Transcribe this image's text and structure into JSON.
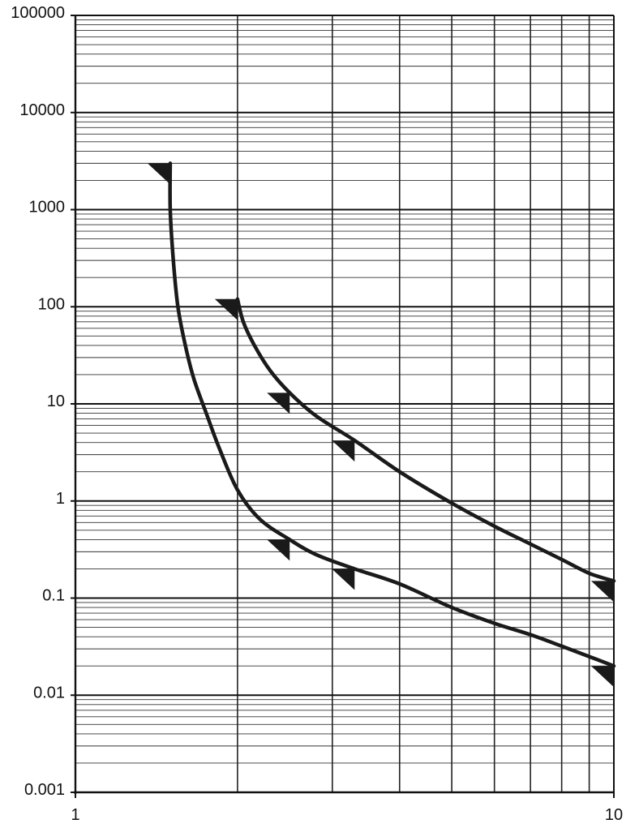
{
  "chart_data": {
    "type": "line",
    "title": "",
    "xlabel": "",
    "ylabel": "",
    "xscale": "log",
    "yscale": "log",
    "xlim": [
      1,
      10
    ],
    "ylim": [
      0.001,
      100000
    ],
    "grid": true,
    "x_tick_labels": [
      "1",
      "10"
    ],
    "y_tick_labels": [
      "100000",
      "10000",
      "1000",
      "100",
      "10",
      "1",
      "0.1",
      "0.01",
      "0.001"
    ],
    "line_color": "#1a1a1a",
    "series": [
      {
        "x": [
          1.5,
          1.5,
          1.52,
          1.55,
          1.6,
          1.66,
          1.75,
          1.85,
          2.0,
          2.2,
          2.5,
          2.8,
          3.3,
          4.0,
          5.0,
          6.0,
          7.0,
          8.0,
          9.0,
          10.0
        ],
        "y": [
          3000,
          1000,
          300,
          100,
          40,
          18,
          8,
          3.5,
          1.3,
          0.65,
          0.4,
          0.28,
          0.2,
          0.14,
          0.08,
          0.055,
          0.042,
          0.032,
          0.025,
          0.02
        ],
        "markers_at_x": [
          1.5,
          2.5,
          3.3,
          10.0
        ]
      },
      {
        "x": [
          2.0,
          2.05,
          2.15,
          2.3,
          2.5,
          2.8,
          3.3,
          4.0,
          5.0,
          6.0,
          7.0,
          8.0,
          9.0,
          10.0
        ],
        "y": [
          120,
          70,
          40,
          22,
          13,
          7.5,
          4.2,
          2.0,
          0.95,
          0.55,
          0.36,
          0.25,
          0.18,
          0.15
        ],
        "markers_at_x": [
          2.0,
          2.5,
          3.3,
          10.0
        ]
      }
    ]
  }
}
